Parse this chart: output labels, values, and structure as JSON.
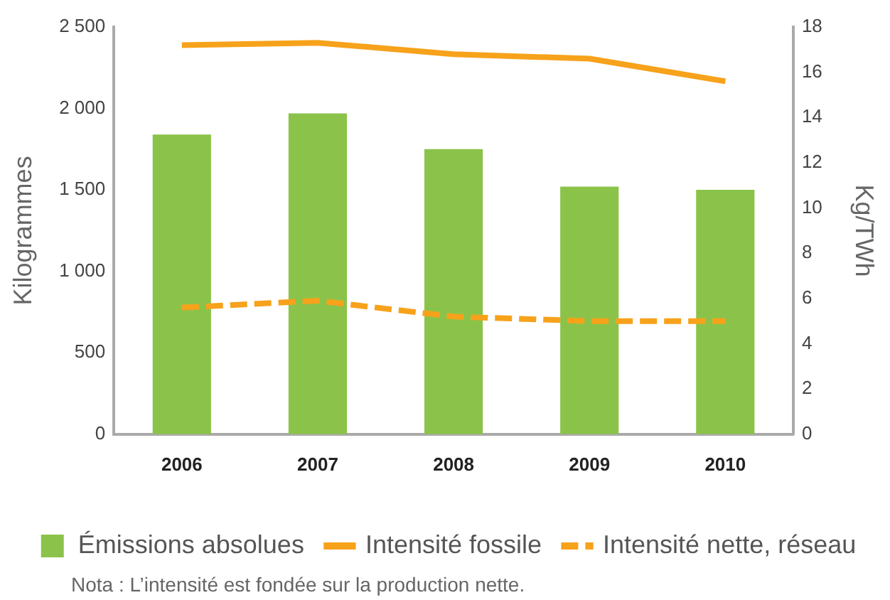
{
  "chart_data": {
    "type": "bar",
    "categories": [
      "2006",
      "2007",
      "2008",
      "2009",
      "2010"
    ],
    "series": [
      {
        "name": "Émissions absolues",
        "color": "#8bc34a",
        "values": [
          1840,
          1970,
          1750,
          1520,
          1500
        ]
      },
      {
        "name": "Intensité fossile",
        "type": "line",
        "axis": "y2",
        "color": "#f7a21b",
        "line_style": "solid",
        "values": [
          17.2,
          17.3,
          16.8,
          16.6,
          15.6
        ]
      },
      {
        "name": "Intensité nette, réseau",
        "type": "line",
        "axis": "y2",
        "color": "#f7a21b",
        "line_style": "dashed",
        "values": [
          5.6,
          5.9,
          5.2,
          5.0,
          5.0
        ]
      }
    ],
    "ylabel": "Kilogrammes",
    "y2label": "Kg/TWh",
    "ylim": [
      0,
      2500
    ],
    "yticks": [
      0,
      500,
      {
        "value": 1000,
        "label": "1 000"
      },
      {
        "value": 1500,
        "label": "1 500"
      },
      {
        "value": 2000,
        "label": "2 000"
      },
      {
        "value": 2500,
        "label": "2 500"
      }
    ],
    "y2lim": [
      0,
      18
    ],
    "y2ticks": [
      0,
      2,
      4,
      6,
      8,
      10,
      12,
      14,
      16,
      18
    ],
    "grid": false,
    "legend": "bottom",
    "marker": "none",
    "annotations": [
      "Nota : L’intensité est fondée sur la production nette."
    ]
  }
}
